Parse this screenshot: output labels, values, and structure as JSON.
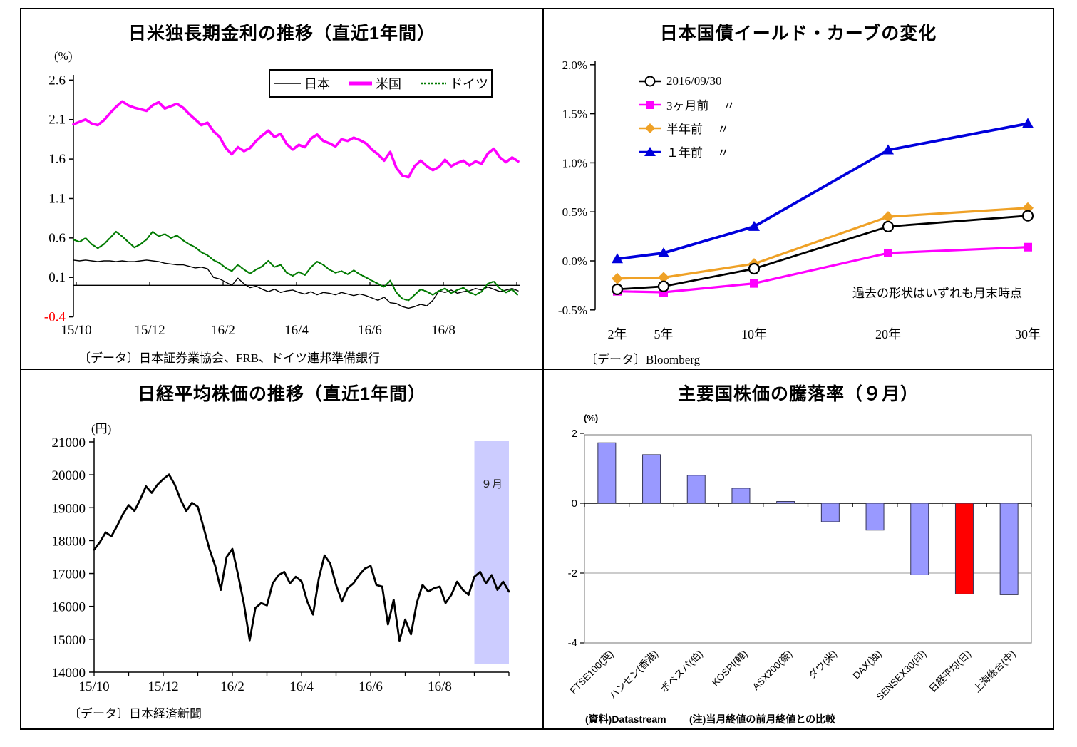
{
  "chart_data": [
    {
      "id": "jp-us-de-rates",
      "type": "line",
      "title": "日米独長期金利の推移（直近1年間）",
      "unit": "(%)",
      "ylim": [
        -0.4,
        2.6
      ],
      "y_ticks": [
        "2.6",
        "2.1",
        "1.6",
        "1.1",
        "0.6",
        "0.1",
        "-0.4"
      ],
      "x_ticks": [
        "15/10",
        "15/12",
        "16/2",
        "16/4",
        "16/6",
        "16/8"
      ],
      "negative_tick_color": "#FF0000",
      "series": [
        {
          "name": "日本",
          "color": "#000000",
          "values": [
            0.32,
            0.31,
            0.32,
            0.31,
            0.3,
            0.31,
            0.31,
            0.3,
            0.31,
            0.3,
            0.3,
            0.31,
            0.32,
            0.31,
            0.3,
            0.28,
            0.27,
            0.26,
            0.26,
            0.24,
            0.22,
            0.23,
            0.21,
            0.1,
            0.08,
            0.04,
            0.0,
            0.09,
            0.02,
            -0.03,
            -0.01,
            -0.05,
            -0.08,
            -0.05,
            -0.09,
            -0.07,
            -0.06,
            -0.09,
            -0.11,
            -0.08,
            -0.12,
            -0.09,
            -0.1,
            -0.12,
            -0.09,
            -0.11,
            -0.13,
            -0.11,
            -0.13,
            -0.16,
            -0.19,
            -0.15,
            -0.22,
            -0.23,
            -0.27,
            -0.29,
            -0.27,
            -0.24,
            -0.26,
            -0.19,
            -0.07,
            -0.09,
            -0.06,
            -0.1,
            -0.08,
            -0.07,
            -0.04,
            -0.06,
            -0.02,
            -0.05,
            -0.08,
            -0.06,
            -0.04,
            -0.07
          ]
        },
        {
          "name": "米国",
          "color": "#FF00FF",
          "values": [
            2.04,
            2.07,
            2.1,
            2.05,
            2.03,
            2.09,
            2.18,
            2.26,
            2.33,
            2.28,
            2.25,
            2.23,
            2.21,
            2.28,
            2.32,
            2.24,
            2.27,
            2.3,
            2.25,
            2.17,
            2.1,
            2.03,
            2.06,
            1.95,
            1.88,
            1.74,
            1.66,
            1.75,
            1.7,
            1.74,
            1.83,
            1.9,
            1.96,
            1.88,
            1.92,
            1.79,
            1.72,
            1.78,
            1.75,
            1.86,
            1.91,
            1.83,
            1.8,
            1.76,
            1.85,
            1.83,
            1.87,
            1.84,
            1.8,
            1.72,
            1.66,
            1.58,
            1.69,
            1.49,
            1.39,
            1.37,
            1.51,
            1.58,
            1.51,
            1.46,
            1.5,
            1.59,
            1.51,
            1.55,
            1.58,
            1.52,
            1.57,
            1.54,
            1.67,
            1.73,
            1.62,
            1.56,
            1.62,
            1.57
          ]
        },
        {
          "name": "ドイツ",
          "color": "#007A00",
          "values": [
            0.58,
            0.55,
            0.6,
            0.52,
            0.47,
            0.52,
            0.6,
            0.68,
            0.62,
            0.55,
            0.48,
            0.52,
            0.58,
            0.68,
            0.62,
            0.65,
            0.6,
            0.63,
            0.57,
            0.52,
            0.48,
            0.42,
            0.38,
            0.32,
            0.28,
            0.22,
            0.18,
            0.26,
            0.2,
            0.15,
            0.2,
            0.24,
            0.31,
            0.23,
            0.26,
            0.16,
            0.12,
            0.17,
            0.13,
            0.23,
            0.3,
            0.26,
            0.2,
            0.16,
            0.18,
            0.14,
            0.19,
            0.14,
            0.1,
            0.06,
            0.02,
            -0.02,
            0.06,
            -0.09,
            -0.17,
            -0.19,
            -0.12,
            -0.05,
            -0.08,
            -0.12,
            -0.07,
            -0.04,
            -0.1,
            -0.06,
            -0.03,
            -0.09,
            -0.12,
            -0.08,
            0.02,
            0.05,
            -0.04,
            -0.09,
            -0.05,
            -0.13
          ]
        }
      ],
      "source": "〔データ〕日本証券業協会、FRB、ドイツ連邦準備銀行"
    },
    {
      "id": "jgb-yield-curve",
      "type": "line",
      "title": "日本国債イールド・カーブの変化",
      "ylim": [
        -0.5,
        2.0
      ],
      "y_ticks": [
        "2.0%",
        "1.5%",
        "1.0%",
        "0.5%",
        "0.0%",
        "-0.5%"
      ],
      "categories": [
        "2年",
        "5年",
        "10年",
        "20年",
        "30年"
      ],
      "series": [
        {
          "name": "2016/09/30",
          "suffix": "",
          "marker": "circle",
          "color": "#000000",
          "values": [
            -0.29,
            -0.26,
            -0.08,
            0.35,
            0.46
          ]
        },
        {
          "name": "3ヶ月前",
          "suffix": "〃",
          "marker": "square",
          "color": "#FF00FF",
          "values": [
            -0.31,
            -0.32,
            -0.23,
            0.08,
            0.14
          ]
        },
        {
          "name": "半年前",
          "suffix": "〃",
          "marker": "diamond",
          "color": "#EFA126",
          "values": [
            -0.18,
            -0.17,
            -0.03,
            0.45,
            0.54
          ]
        },
        {
          "name": "１年前",
          "suffix": "〃",
          "marker": "triangle",
          "color": "#0000DC",
          "values": [
            0.02,
            0.08,
            0.35,
            1.13,
            1.4
          ]
        }
      ],
      "annotation": "過去の形状はいずれも月末時点",
      "source": "〔データ〕Bloomberg"
    },
    {
      "id": "nikkei-average",
      "type": "line",
      "title": "日経平均株価の推移（直近1年間）",
      "unit": "(円)",
      "ylim": [
        14000,
        21000
      ],
      "y_ticks": [
        "21000",
        "20000",
        "19000",
        "18000",
        "17000",
        "16000",
        "15000",
        "14000"
      ],
      "x_ticks": [
        "15/10",
        "15/12",
        "16/2",
        "16/4",
        "16/6",
        "16/8"
      ],
      "band": {
        "label": "９月",
        "color": "#CCCCFF"
      },
      "series": [
        {
          "name": "日経平均株価",
          "color": "#000000",
          "values": [
            17725,
            17950,
            18250,
            18130,
            18450,
            18800,
            19080,
            18900,
            19250,
            19650,
            19450,
            19700,
            19870,
            20010,
            19700,
            19250,
            18900,
            19150,
            19030,
            18400,
            17750,
            17240,
            16500,
            17500,
            17750,
            16950,
            16080,
            14970,
            15950,
            16100,
            16030,
            16700,
            16950,
            17050,
            16700,
            16900,
            16760,
            16150,
            15750,
            16850,
            17550,
            17300,
            16650,
            16150,
            16550,
            16700,
            16950,
            17150,
            17230,
            16650,
            16600,
            15450,
            16200,
            14960,
            15600,
            15150,
            16100,
            16650,
            16450,
            16550,
            16600,
            16100,
            16350,
            16750,
            16500,
            16350,
            16900,
            17050,
            16700,
            16950,
            16500,
            16750,
            16450
          ]
        }
      ],
      "source": "〔データ〕日本経済新聞"
    },
    {
      "id": "major-markets-monthly-change",
      "type": "bar",
      "title": "主要国株価の騰落率（９月）",
      "unit": "(%)",
      "ylim": [
        -4,
        2
      ],
      "y_ticks": [
        "2",
        "0",
        "-2",
        "-4"
      ],
      "categories": [
        "FTSE100(英)",
        "ハンセン(香港)",
        "ボベスパ(伯)",
        "KOSPI(韓)",
        "ASX200(豪)",
        "ダウ(米)",
        "DAX(独)",
        "SENSEX30(印)",
        "日経平均(日)",
        "上海総合(中)"
      ],
      "values": [
        1.73,
        1.39,
        0.8,
        0.43,
        0.05,
        -0.53,
        -0.77,
        -2.05,
        -2.6,
        -2.62
      ],
      "colors": [
        "#9999FF",
        "#9999FF",
        "#9999FF",
        "#9999FF",
        "#9999FF",
        "#9999FF",
        "#9999FF",
        "#9999FF",
        "#FF0000",
        "#9999FF"
      ],
      "notes": [
        "(資料)Datastream",
        "(注)当月終値の前月終値との比較"
      ]
    }
  ]
}
